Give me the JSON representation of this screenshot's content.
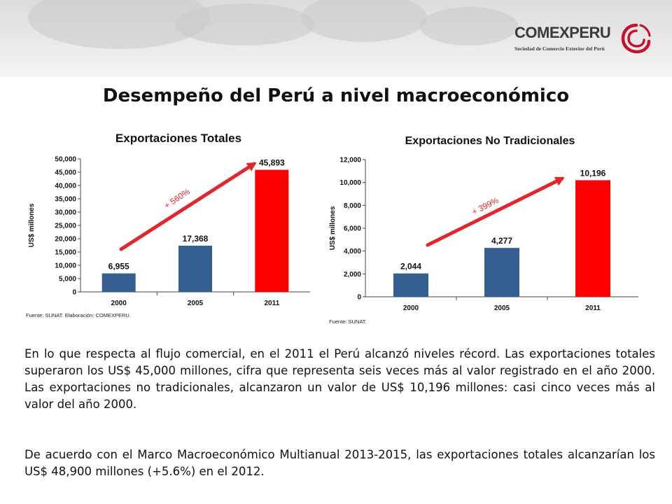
{
  "header": {
    "logo_name": "COMEXPERU",
    "logo_subtitle": "Sociedad de Comercio Exterior del Perú",
    "colors": {
      "brand_red": "#c8102e",
      "logo_gray": "#3a3a3a"
    }
  },
  "slide": {
    "title": "Desempeño del Perú a nivel macroeconómico",
    "paragraph1": "En lo que respecta al flujo comercial, en el 2011 el Perú alcanzó niveles récord. Las exportaciones totales superaron los US$ 45,000 millones, cifra que representa seis veces más al valor registrado en el año 2000. Las exportaciones no tradicionales, alcanzaron un valor de US$ 10,196 millones: casi cinco veces más al valor del año 2000.",
    "paragraph2": "De acuerdo con el Marco Macroeconómico Multianual 2013-2015, las exportaciones totales alcanzarían los US$ 48,900 millones (+5.6%) en el 2012."
  },
  "chart_data": [
    {
      "type": "bar",
      "title": "Exportaciones Totales",
      "ylabel": "US$ millones",
      "xlabel": "",
      "categories": [
        "2000",
        "2005",
        "2011"
      ],
      "values": [
        6955,
        17368,
        45893
      ],
      "value_labels": [
        "6,955",
        "17,368",
        "45,893"
      ],
      "bar_colors": [
        "#355f91",
        "#355f91",
        "#ff0000"
      ],
      "ylim": [
        0,
        50000
      ],
      "yticks": [
        0,
        5000,
        10000,
        15000,
        20000,
        25000,
        30000,
        35000,
        40000,
        45000,
        50000
      ],
      "ytick_labels": [
        "0",
        "5,000",
        "10,000",
        "15,000",
        "20,000",
        "25,000",
        "30,000",
        "35,000",
        "40,000",
        "45,000",
        "50,000"
      ],
      "annotation": "+ 560%",
      "source": "Fuente: SUNAT. Elaboración: COMEXPERU.",
      "grid": false
    },
    {
      "type": "bar",
      "title": "Exportaciones No Tradicionales",
      "ylabel": "US$ millones",
      "xlabel": "",
      "categories": [
        "2000",
        "2005",
        "2011"
      ],
      "values": [
        2044,
        4277,
        10196
      ],
      "value_labels": [
        "2,044",
        "4,277",
        "10,196"
      ],
      "bar_colors": [
        "#355f91",
        "#355f91",
        "#ff0000"
      ],
      "ylim": [
        0,
        12000
      ],
      "yticks": [
        0,
        2000,
        4000,
        6000,
        8000,
        10000,
        12000
      ],
      "ytick_labels": [
        "0",
        "2,000",
        "4,000",
        "6,000",
        "8,000",
        "10,000",
        "12,000"
      ],
      "annotation": "+ 399%",
      "source": "Fuente: SUNAT.",
      "grid": false
    }
  ]
}
